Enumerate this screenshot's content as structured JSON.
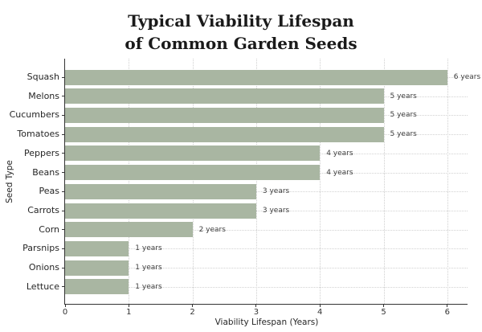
{
  "title": {
    "line1": "Typical Viability Lifespan",
    "line2": "of Common Garden Seeds"
  },
  "chart_data": {
    "type": "bar",
    "orientation": "horizontal",
    "title": "Typical Viability Lifespan of Common Garden Seeds",
    "categories": [
      "Squash",
      "Melons",
      "Cucumbers",
      "Tomatoes",
      "Peppers",
      "Beans",
      "Peas",
      "Carrots",
      "Corn",
      "Parsnips",
      "Onions",
      "Lettuce"
    ],
    "values": [
      6,
      5,
      5,
      5,
      4,
      4,
      3,
      3,
      2,
      1,
      1,
      1
    ],
    "bar_labels": [
      "6 years",
      "5 years",
      "5 years",
      "5 years",
      "4 years",
      "4 years",
      "3 years",
      "3 years",
      "2 years",
      "1 years",
      "1 years",
      "1 years"
    ],
    "xlabel": "Viability Lifespan (Years)",
    "ylabel": "Seed Type",
    "xlim": [
      0,
      6.3
    ],
    "xticks": [
      "0",
      "1",
      "2",
      "3",
      "4",
      "5",
      "6"
    ],
    "grid": "dotted",
    "legend": "none"
  },
  "colors": {
    "bar": "#a9b6a2",
    "axis": "#333333",
    "grid": "#d2d2d2",
    "title_text": "#1a1a1a",
    "tick_text": "#333333",
    "value_text": "#3d3d3d",
    "background": "#ffffff"
  }
}
